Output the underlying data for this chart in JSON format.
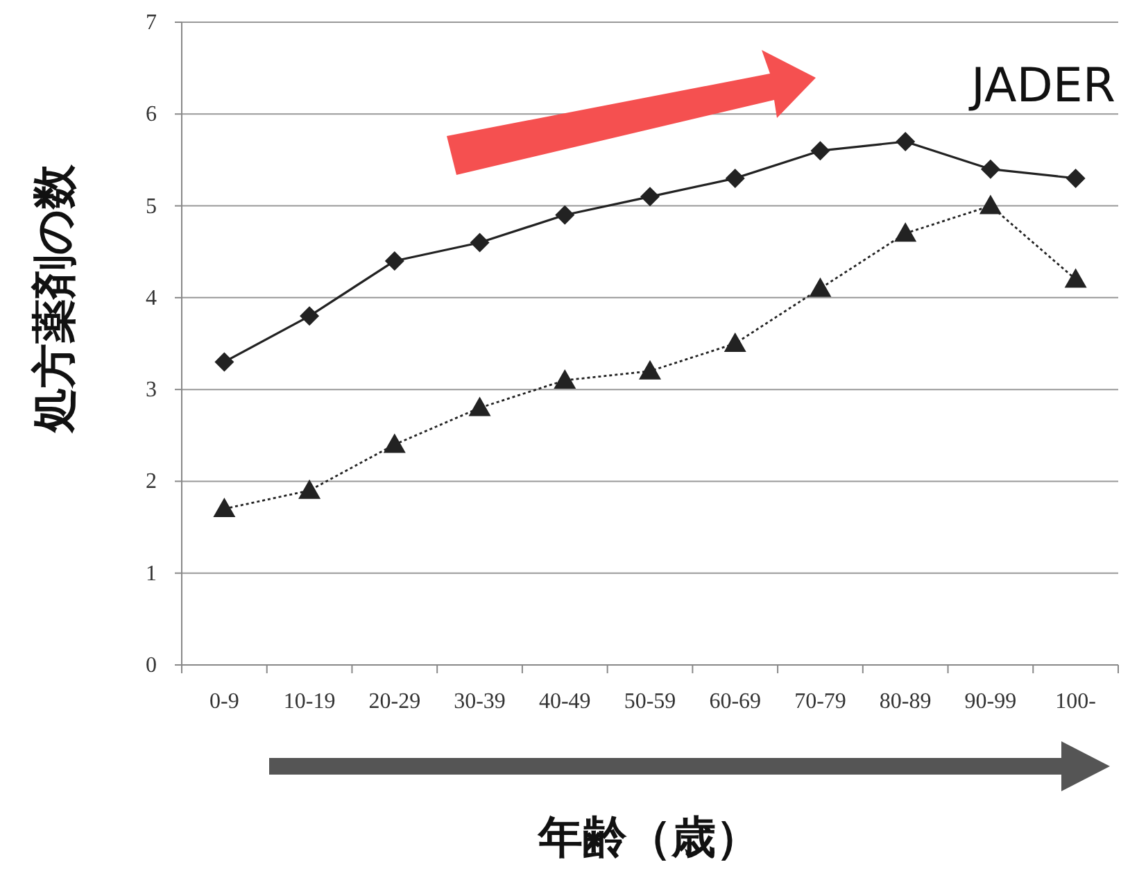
{
  "chart_data": {
    "type": "line",
    "xlabel": "年齢（歳）",
    "ylabel": "処方薬剤の数",
    "categories": [
      "0-9",
      "10-19",
      "20-29",
      "30-39",
      "40-49",
      "50-59",
      "60-69",
      "70-79",
      "80-89",
      "90-99",
      "100-"
    ],
    "series": [
      {
        "color": "#222222",
        "marker": "diamond",
        "line_style": "solid",
        "values": [
          3.3,
          3.8,
          4.4,
          4.6,
          4.9,
          5.1,
          5.3,
          5.6,
          5.7,
          5.4,
          5.3
        ]
      },
      {
        "color": "#222222",
        "marker": "triangle",
        "line_style": "dotted",
        "values": [
          1.7,
          1.9,
          2.4,
          2.8,
          3.1,
          3.2,
          3.5,
          4.1,
          4.7,
          5.0,
          4.2
        ]
      }
    ],
    "ylim": [
      0,
      7
    ],
    "yticks": [
      0,
      1,
      2,
      3,
      4,
      5,
      6,
      7
    ],
    "grid": "y",
    "annotations": [
      "JADER"
    ]
  }
}
